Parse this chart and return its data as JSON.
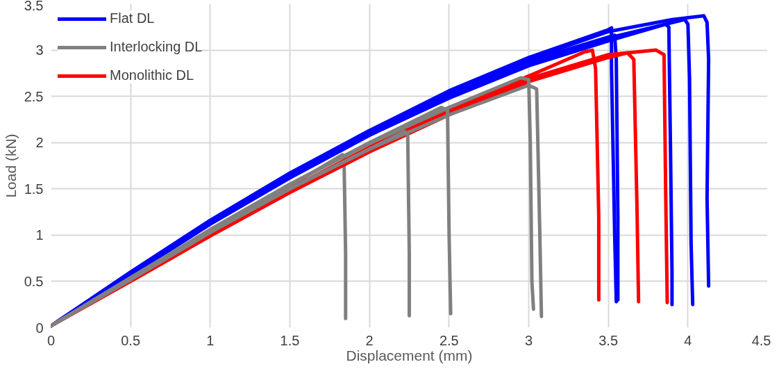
{
  "chart_data": {
    "type": "line",
    "xlabel": "Displacement (mm)",
    "ylabel": "Load (kN)",
    "xlim": [
      0,
      4.5
    ],
    "ylim": [
      0,
      3.5
    ],
    "xticks": [
      0,
      0.5,
      1,
      1.5,
      2,
      2.5,
      3,
      3.5,
      4,
      4.5
    ],
    "yticks": [
      0,
      0.5,
      1,
      1.5,
      2,
      2.5,
      3,
      3.5
    ],
    "grid": true,
    "legend": "top left",
    "line_style": "solid",
    "marker": "none",
    "series": [
      {
        "name": "Flat DL",
        "color": "#0000ff",
        "x": [
          0,
          0.5,
          1,
          1.5,
          2,
          2.5,
          3,
          3.5,
          3.9,
          4.1,
          4.12,
          4.13,
          4.12,
          4.13
        ],
        "values": [
          0.02,
          0.6,
          1.16,
          1.67,
          2.13,
          2.55,
          2.9,
          3.2,
          3.33,
          3.37,
          3.3,
          2.9,
          1.4,
          0.45
        ]
      },
      {
        "name": "Interlocking DL",
        "color": "#808080",
        "x": [
          0,
          0.5,
          1,
          1.5,
          1.83,
          1.84,
          1.85,
          1.85
        ],
        "values": [
          0.02,
          0.53,
          1.05,
          1.53,
          1.87,
          1.85,
          0.8,
          0.1
        ]
      },
      {
        "name": "Monolithic DL",
        "color": "#ff0000",
        "x": [
          0,
          0.5,
          1,
          1.5,
          2,
          2.5,
          3,
          3.35,
          3.4,
          3.42,
          3.44,
          3.44
        ],
        "values": [
          0.02,
          0.52,
          1.03,
          1.5,
          1.95,
          2.35,
          2.72,
          2.98,
          3.0,
          2.8,
          1.2,
          0.3
        ]
      },
      {
        "color": "#0000ff",
        "x": [
          0,
          0.5,
          1,
          1.5,
          2,
          2.5,
          3,
          3.5,
          3.98,
          4.0,
          4.01,
          4.02,
          4.03
        ],
        "values": [
          0.02,
          0.57,
          1.12,
          1.62,
          2.08,
          2.5,
          2.85,
          3.13,
          3.33,
          3.28,
          2.7,
          0.9,
          0.25
        ]
      },
      {
        "color": "#0000ff",
        "x": [
          0,
          0.5,
          1,
          1.5,
          2,
          2.5,
          3,
          3.5,
          3.86,
          3.88,
          3.89,
          3.9,
          3.9
        ],
        "values": [
          0.02,
          0.57,
          1.12,
          1.62,
          2.08,
          2.48,
          2.83,
          3.1,
          3.28,
          3.25,
          2.0,
          0.6,
          0.25
        ]
      },
      {
        "color": "#0000ff",
        "x": [
          0,
          0.5,
          1,
          1.5,
          2,
          2.5,
          3,
          3.5,
          3.52,
          3.52,
          3.54,
          3.55
        ],
        "values": [
          0.02,
          0.6,
          1.16,
          1.67,
          2.13,
          2.56,
          2.92,
          3.22,
          3.24,
          2.8,
          1.0,
          0.28
        ]
      },
      {
        "color": "#0000ff",
        "x": [
          0,
          0.5,
          1,
          1.5,
          2,
          2.5,
          3,
          3.5,
          3.54,
          3.55,
          3.56,
          3.56
        ],
        "values": [
          0.02,
          0.58,
          1.13,
          1.64,
          2.1,
          2.52,
          2.88,
          3.14,
          3.16,
          2.9,
          1.2,
          0.3
        ]
      },
      {
        "color": "#ff0000",
        "x": [
          0,
          0.5,
          1,
          1.5,
          2,
          2.5,
          3,
          3.5,
          3.62,
          3.66,
          3.68,
          3.69
        ],
        "values": [
          0.02,
          0.5,
          0.99,
          1.46,
          1.9,
          2.3,
          2.66,
          2.92,
          2.97,
          2.9,
          1.3,
          0.28
        ]
      },
      {
        "color": "#ff0000",
        "x": [
          0,
          0.5,
          1,
          1.5,
          2,
          2.5,
          3,
          3.5,
          3.8,
          3.85,
          3.86,
          3.87
        ],
        "values": [
          0.02,
          0.51,
          1.01,
          1.48,
          1.92,
          2.32,
          2.69,
          2.95,
          3.0,
          2.95,
          1.5,
          0.27
        ]
      },
      {
        "color": "#808080",
        "x": [
          0,
          0.5,
          1,
          1.5,
          2,
          2.22,
          2.24,
          2.25,
          2.25
        ],
        "values": [
          0.02,
          0.52,
          1.03,
          1.5,
          1.93,
          2.12,
          2.1,
          0.8,
          0.13
        ]
      },
      {
        "color": "#808080",
        "x": [
          0,
          0.5,
          1,
          1.5,
          2,
          2.45,
          2.49,
          2.5,
          2.51
        ],
        "values": [
          0.02,
          0.54,
          1.06,
          1.55,
          2.0,
          2.38,
          2.35,
          1.0,
          0.15
        ]
      },
      {
        "color": "#808080",
        "x": [
          0,
          0.5,
          1,
          1.5,
          2,
          2.5,
          2.95,
          3.0,
          3.01,
          3.02,
          3.03
        ],
        "values": [
          0.02,
          0.54,
          1.06,
          1.55,
          1.99,
          2.38,
          2.7,
          2.68,
          2.0,
          0.5,
          0.2
        ]
      },
      {
        "color": "#808080",
        "x": [
          0,
          0.5,
          1,
          1.5,
          2,
          2.5,
          3.0,
          3.05,
          3.07,
          3.08
        ],
        "values": [
          0.02,
          0.52,
          1.03,
          1.5,
          1.93,
          2.3,
          2.62,
          2.58,
          1.0,
          0.12
        ]
      }
    ]
  }
}
